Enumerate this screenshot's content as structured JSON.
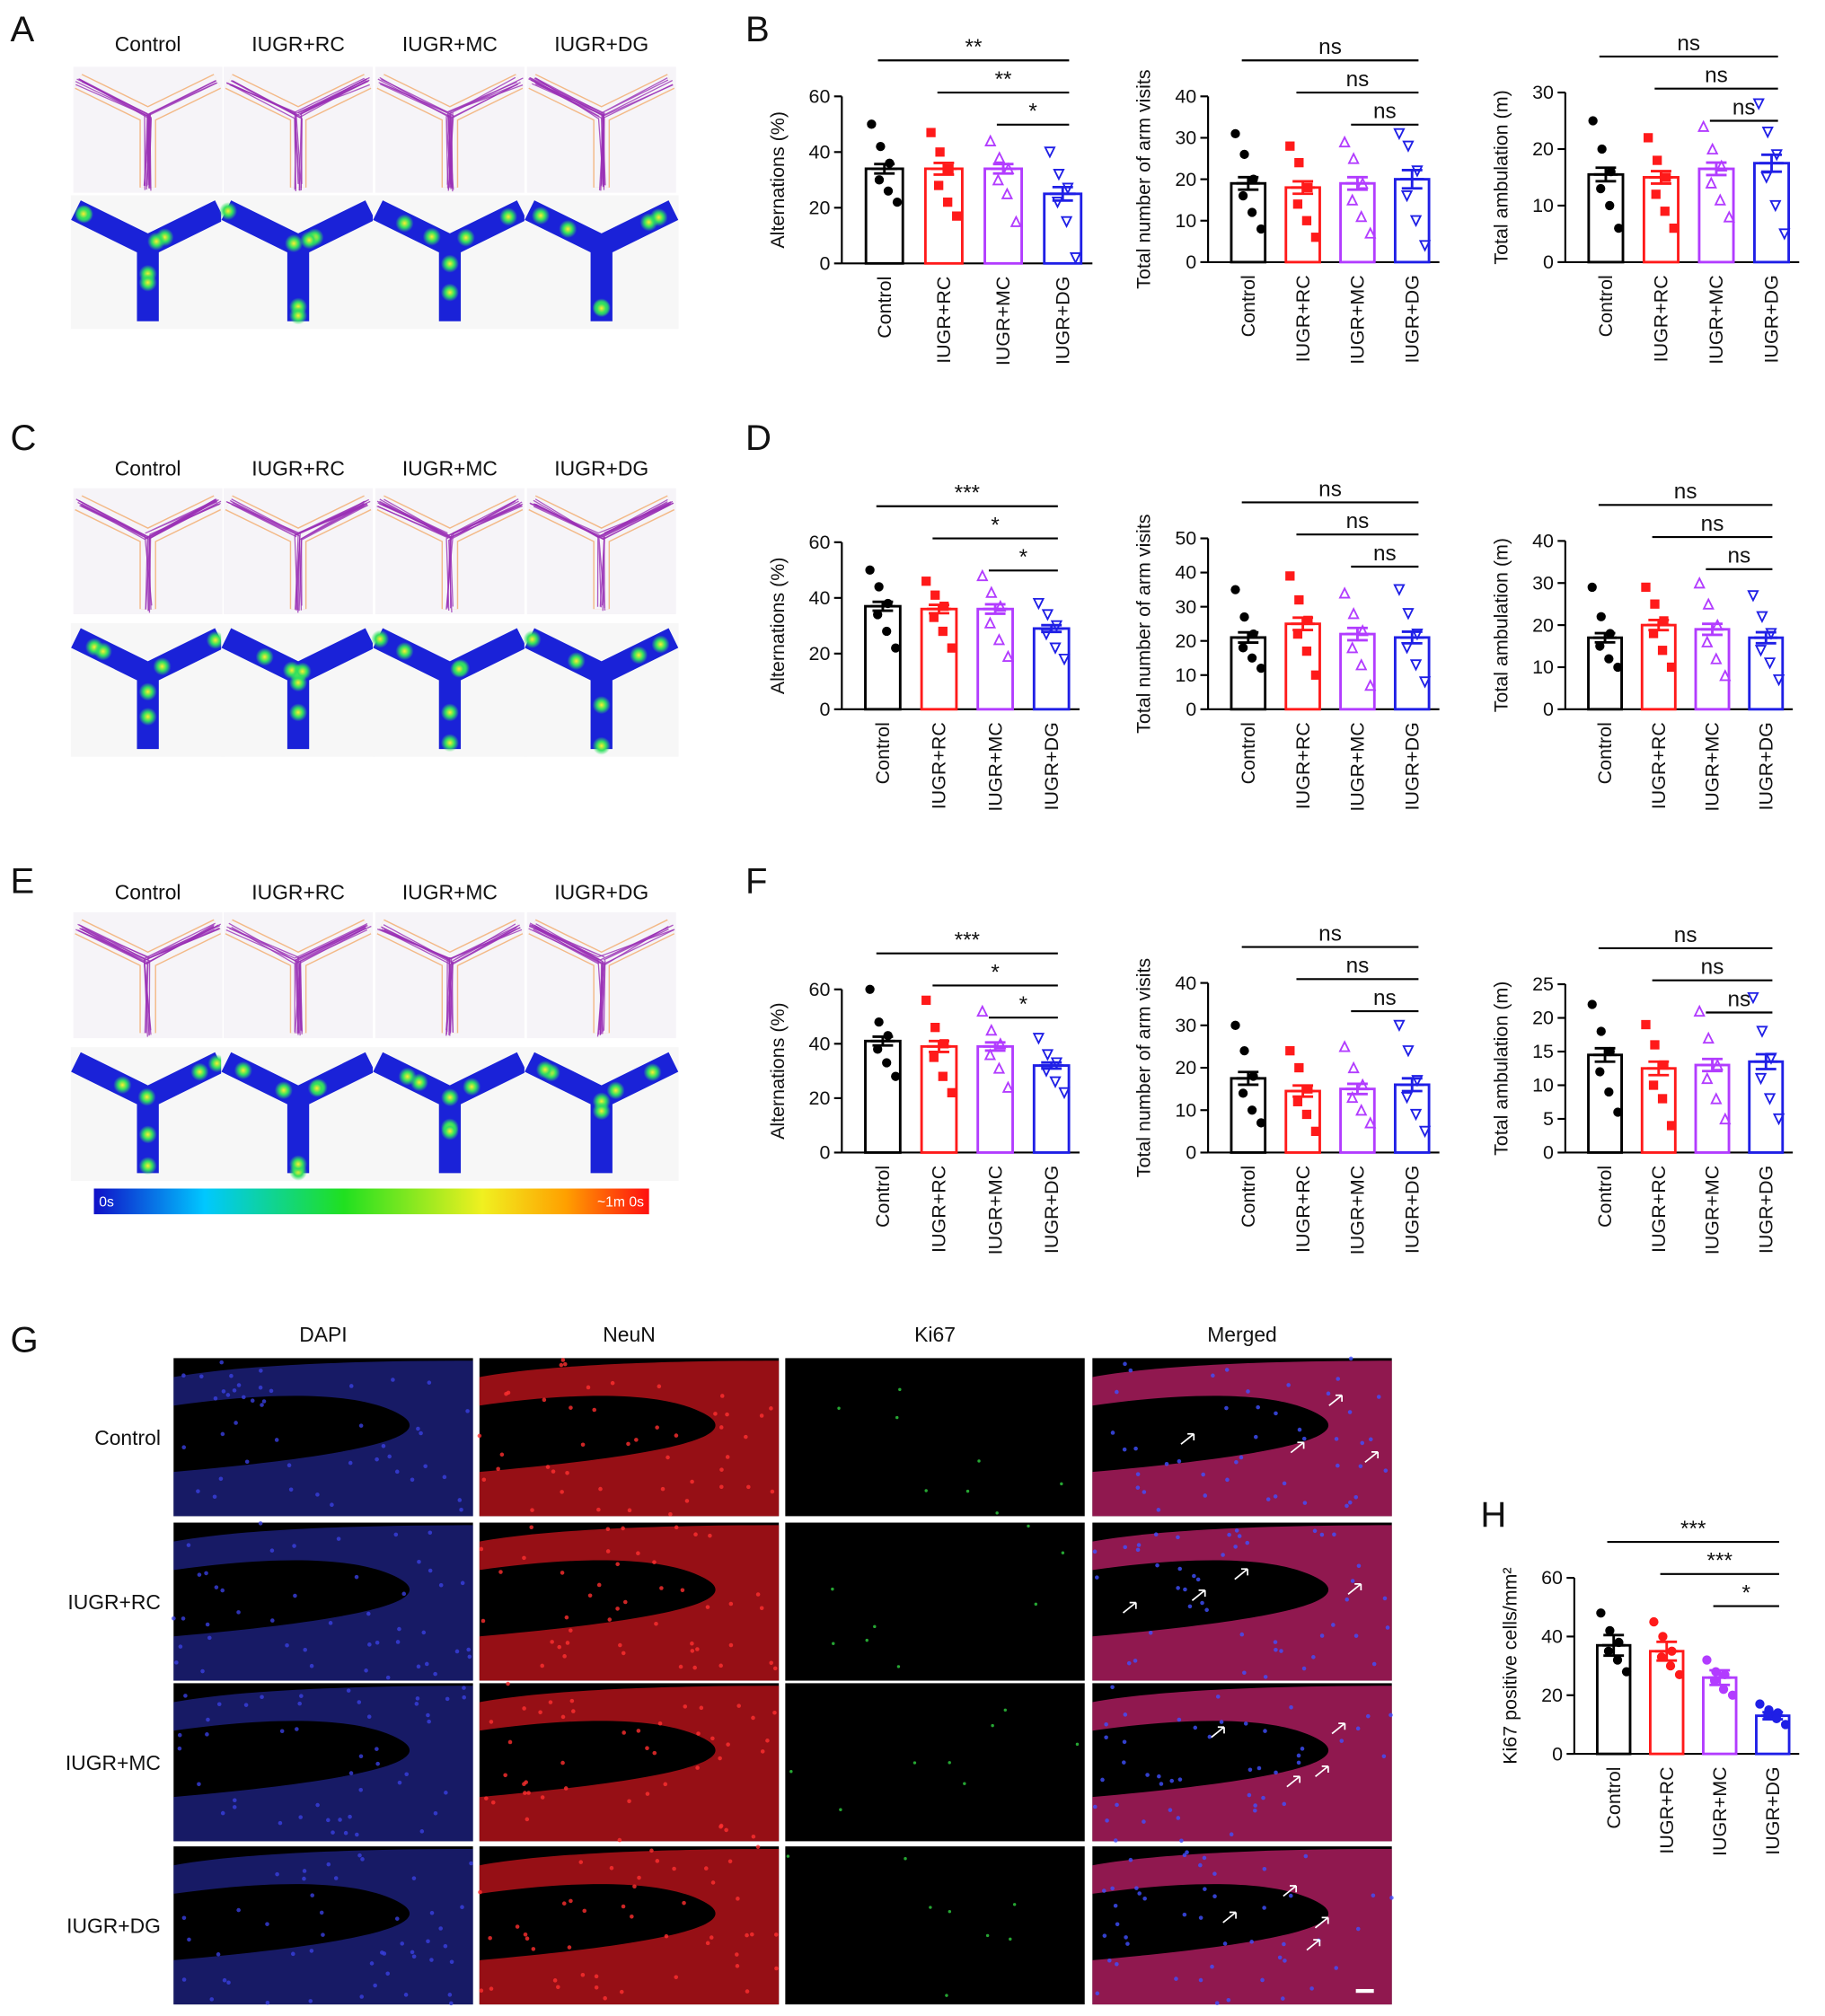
{
  "panel_labels": [
    "A",
    "B",
    "C",
    "D",
    "E",
    "F",
    "G",
    "H"
  ],
  "maze": {
    "groups": [
      "Control",
      "IUGR+RC",
      "IUGR+MC",
      "IUGR+DG"
    ],
    "colorbar": {
      "min_label": "0s",
      "max_label": "~1m 0s"
    }
  },
  "microscopy": {
    "columns": [
      "DAPI",
      "NeuN",
      "Ki67",
      "Merged"
    ],
    "rows": [
      "Control",
      "IUGR+RC",
      "IUGR+MC",
      "IUGR+DG"
    ]
  },
  "chart_data": [
    {
      "type": "bar",
      "ylabel": "Alternations (%)",
      "categories": [
        "Control",
        "IUGR+RC",
        "IUGR+MC",
        "IUGR+DG"
      ],
      "colors": [
        "#000000",
        "#ff1a1a",
        "#b23cff",
        "#1f1fe6"
      ],
      "markers": [
        "circle",
        "square",
        "triangle",
        "triangle-down"
      ],
      "values": [
        34,
        34,
        34,
        25
      ],
      "errors": [
        1.7,
        2.1,
        1.7,
        2.4
      ],
      "points": [
        [
          50,
          42,
          36,
          30,
          26,
          22
        ],
        [
          47,
          40,
          34,
          28,
          22,
          17
        ],
        [
          44,
          38,
          34,
          30,
          25,
          15
        ],
        [
          40,
          32,
          27,
          22,
          15,
          2
        ]
      ],
      "ylim": [
        0,
        60
      ],
      "yticks": [
        0,
        20,
        40,
        60
      ],
      "brackets": [
        {
          "from": 0,
          "to": 3,
          "label": "**"
        },
        {
          "from": 1,
          "to": 3,
          "label": "**"
        },
        {
          "from": 2,
          "to": 3,
          "label": "*"
        }
      ]
    },
    {
      "type": "bar",
      "ylabel": "Total number of arm visits",
      "categories": [
        "Control",
        "IUGR+RC",
        "IUGR+MC",
        "IUGR+DG"
      ],
      "colors": [
        "#000000",
        "#ff1a1a",
        "#b23cff",
        "#1f1fe6"
      ],
      "markers": [
        "circle",
        "square",
        "triangle",
        "triangle-down"
      ],
      "values": [
        19,
        18,
        19,
        20
      ],
      "errors": [
        1.5,
        1.5,
        1.5,
        2.2
      ],
      "points": [
        [
          31,
          26,
          20,
          16,
          12,
          8
        ],
        [
          28,
          24,
          18,
          14,
          10,
          6
        ],
        [
          29,
          25,
          19,
          15,
          11,
          7
        ],
        [
          31,
          28,
          22,
          16,
          10,
          4
        ]
      ],
      "ylim": [
        0,
        40
      ],
      "yticks": [
        0,
        10,
        20,
        30,
        40
      ],
      "brackets": [
        {
          "from": 0,
          "to": 3,
          "label": "ns"
        },
        {
          "from": 1,
          "to": 3,
          "label": "ns"
        },
        {
          "from": 2,
          "to": 3,
          "label": "ns"
        }
      ]
    },
    {
      "type": "bar",
      "ylabel": "Total ambulation (m)",
      "categories": [
        "Control",
        "IUGR+RC",
        "IUGR+MC",
        "IUGR+DG"
      ],
      "colors": [
        "#000000",
        "#ff1a1a",
        "#b23cff",
        "#1f1fe6"
      ],
      "markers": [
        "circle",
        "square",
        "triangle",
        "triangle-down"
      ],
      "values": [
        15.5,
        15,
        16.5,
        17.5
      ],
      "errors": [
        1.2,
        1.1,
        1.1,
        1.5
      ],
      "points": [
        [
          25,
          20,
          16,
          13,
          10,
          6
        ],
        [
          22,
          18,
          15,
          12,
          9,
          6
        ],
        [
          24,
          20,
          17,
          14,
          11,
          8
        ],
        [
          28,
          23,
          19,
          15,
          10,
          5
        ]
      ],
      "ylim": [
        0,
        30
      ],
      "yticks": [
        0,
        10,
        20,
        30
      ],
      "brackets": [
        {
          "from": 0,
          "to": 3,
          "label": "ns"
        },
        {
          "from": 1,
          "to": 3,
          "label": "ns"
        },
        {
          "from": 2,
          "to": 3,
          "label": "ns"
        }
      ]
    },
    {
      "type": "bar",
      "ylabel": "Alternations (%)",
      "categories": [
        "Control",
        "IUGR+RC",
        "IUGR+MC",
        "IUGR+DG"
      ],
      "colors": [
        "#000000",
        "#ff1a1a",
        "#b23cff",
        "#1f1fe6"
      ],
      "markers": [
        "circle",
        "square",
        "triangle",
        "triangle-down"
      ],
      "values": [
        37,
        36,
        36,
        29
      ],
      "errors": [
        1.6,
        1.5,
        1.7,
        1.2
      ],
      "points": [
        [
          50,
          44,
          38,
          34,
          28,
          22
        ],
        [
          46,
          41,
          37,
          33,
          28,
          22
        ],
        [
          48,
          42,
          37,
          31,
          25,
          19
        ],
        [
          38,
          34,
          30,
          27,
          22,
          18
        ]
      ],
      "ylim": [
        0,
        60
      ],
      "yticks": [
        0,
        20,
        40,
        60
      ],
      "brackets": [
        {
          "from": 0,
          "to": 3,
          "label": "***"
        },
        {
          "from": 1,
          "to": 3,
          "label": "*"
        },
        {
          "from": 2,
          "to": 3,
          "label": "*"
        }
      ]
    },
    {
      "type": "bar",
      "ylabel": "Total number of arm visits",
      "categories": [
        "Control",
        "IUGR+RC",
        "IUGR+MC",
        "IUGR+DG"
      ],
      "colors": [
        "#000000",
        "#ff1a1a",
        "#b23cff",
        "#1f1fe6"
      ],
      "markers": [
        "circle",
        "square",
        "triangle",
        "triangle-down"
      ],
      "values": [
        21,
        25,
        22,
        21
      ],
      "errors": [
        1.5,
        1.8,
        1.8,
        1.7
      ],
      "points": [
        [
          35,
          27,
          22,
          18,
          15,
          12
        ],
        [
          39,
          32,
          26,
          22,
          17,
          10
        ],
        [
          34,
          28,
          23,
          18,
          13,
          7
        ],
        [
          35,
          28,
          22,
          18,
          13,
          8
        ]
      ],
      "ylim": [
        0,
        50
      ],
      "yticks": [
        0,
        10,
        20,
        30,
        40,
        50
      ],
      "brackets": [
        {
          "from": 0,
          "to": 3,
          "label": "ns"
        },
        {
          "from": 1,
          "to": 3,
          "label": "ns"
        },
        {
          "from": 2,
          "to": 3,
          "label": "ns"
        }
      ]
    },
    {
      "type": "bar",
      "ylabel": "Total ambulation (m)",
      "categories": [
        "Control",
        "IUGR+RC",
        "IUGR+MC",
        "IUGR+DG"
      ],
      "colors": [
        "#000000",
        "#ff1a1a",
        "#b23cff",
        "#1f1fe6"
      ],
      "markers": [
        "circle",
        "square",
        "triangle",
        "triangle-down"
      ],
      "values": [
        17,
        20,
        19,
        17
      ],
      "errors": [
        1.1,
        1.2,
        1.3,
        1.3
      ],
      "points": [
        [
          29,
          22,
          18,
          15,
          12,
          10
        ],
        [
          29,
          25,
          21,
          18,
          14,
          10
        ],
        [
          30,
          25,
          20,
          16,
          12,
          8
        ],
        [
          27,
          22,
          18,
          14,
          11,
          7
        ]
      ],
      "ylim": [
        0,
        40
      ],
      "yticks": [
        0,
        10,
        20,
        30,
        40
      ],
      "brackets": [
        {
          "from": 0,
          "to": 3,
          "label": "ns"
        },
        {
          "from": 1,
          "to": 3,
          "label": "ns"
        },
        {
          "from": 2,
          "to": 3,
          "label": "ns"
        }
      ]
    },
    {
      "type": "bar",
      "ylabel": "Alternations (%)",
      "categories": [
        "Control",
        "IUGR+RC",
        "IUGR+MC",
        "IUGR+DG"
      ],
      "colors": [
        "#000000",
        "#ff1a1a",
        "#b23cff",
        "#1f1fe6"
      ],
      "markers": [
        "circle",
        "square",
        "triangle",
        "triangle-down"
      ],
      "values": [
        41,
        39,
        39,
        32
      ],
      "errors": [
        1.6,
        2.0,
        1.5,
        1.1
      ],
      "points": [
        [
          60,
          48,
          43,
          38,
          33,
          28
        ],
        [
          56,
          46,
          40,
          35,
          28,
          22
        ],
        [
          52,
          45,
          40,
          36,
          31,
          24
        ],
        [
          42,
          36,
          33,
          30,
          26,
          22
        ]
      ],
      "ylim": [
        0,
        60
      ],
      "yticks": [
        0,
        20,
        40,
        60
      ],
      "brackets": [
        {
          "from": 0,
          "to": 3,
          "label": "***"
        },
        {
          "from": 1,
          "to": 3,
          "label": "*"
        },
        {
          "from": 2,
          "to": 3,
          "label": "*"
        }
      ]
    },
    {
      "type": "bar",
      "ylabel": "Total number of arm visits",
      "categories": [
        "Control",
        "IUGR+RC",
        "IUGR+MC",
        "IUGR+DG"
      ],
      "colors": [
        "#000000",
        "#ff1a1a",
        "#b23cff",
        "#1f1fe6"
      ],
      "markers": [
        "circle",
        "square",
        "triangle",
        "triangle-down"
      ],
      "values": [
        17.5,
        14.5,
        15,
        16
      ],
      "errors": [
        1.5,
        1.3,
        1.2,
        1.5
      ],
      "points": [
        [
          30,
          24,
          18,
          14,
          10,
          7
        ],
        [
          24,
          20,
          15,
          12,
          9,
          5
        ],
        [
          25,
          20,
          16,
          13,
          10,
          7
        ],
        [
          30,
          24,
          17,
          13,
          9,
          5
        ]
      ],
      "ylim": [
        0,
        40
      ],
      "yticks": [
        0,
        10,
        20,
        30,
        40
      ],
      "brackets": [
        {
          "from": 0,
          "to": 3,
          "label": "ns"
        },
        {
          "from": 1,
          "to": 3,
          "label": "ns"
        },
        {
          "from": 2,
          "to": 3,
          "label": "ns"
        }
      ]
    },
    {
      "type": "bar",
      "ylabel": "Total ambulation (m)",
      "categories": [
        "Control",
        "IUGR+RC",
        "IUGR+MC",
        "IUGR+DG"
      ],
      "colors": [
        "#000000",
        "#ff1a1a",
        "#b23cff",
        "#1f1fe6"
      ],
      "markers": [
        "circle",
        "square",
        "triangle",
        "triangle-down"
      ],
      "values": [
        14.5,
        12.5,
        13,
        13.5
      ],
      "errors": [
        1.0,
        1.0,
        0.9,
        1.1
      ],
      "points": [
        [
          22,
          18,
          15,
          12,
          9,
          6
        ],
        [
          19,
          16,
          13,
          10,
          8,
          4
        ],
        [
          21,
          17,
          13,
          11,
          8,
          5
        ],
        [
          23,
          18,
          14,
          11,
          8,
          5
        ]
      ],
      "ylim": [
        0,
        25
      ],
      "yticks": [
        0,
        5,
        10,
        15,
        20,
        25
      ],
      "brackets": [
        {
          "from": 0,
          "to": 3,
          "label": "ns"
        },
        {
          "from": 1,
          "to": 3,
          "label": "ns"
        },
        {
          "from": 2,
          "to": 3,
          "label": "ns"
        }
      ]
    },
    {
      "type": "bar",
      "ylabel": "Ki67 positive cells/mm²",
      "categories": [
        "Control",
        "IUGR+RC",
        "IUGR+MC",
        "IUGR+DG"
      ],
      "colors": [
        "#000000",
        "#ff1a1a",
        "#b23cff",
        "#1f1fe6"
      ],
      "markers": [
        "circle",
        "circle",
        "circle",
        "circle"
      ],
      "values": [
        37,
        35,
        26,
        13
      ],
      "errors": [
        3.5,
        3.2,
        2.5,
        1.2
      ],
      "points": [
        [
          48,
          42,
          38,
          35,
          32,
          28
        ],
        [
          45,
          40,
          35,
          33,
          30,
          27
        ],
        [
          32,
          28,
          27,
          25,
          22,
          20
        ],
        [
          17,
          15,
          14,
          13,
          12,
          10
        ]
      ],
      "ylim": [
        0,
        60
      ],
      "yticks": [
        0,
        20,
        40,
        60
      ],
      "brackets": [
        {
          "from": 0,
          "to": 3,
          "label": "***"
        },
        {
          "from": 1,
          "to": 3,
          "label": "***"
        },
        {
          "from": 2,
          "to": 3,
          "label": "*"
        }
      ]
    }
  ]
}
